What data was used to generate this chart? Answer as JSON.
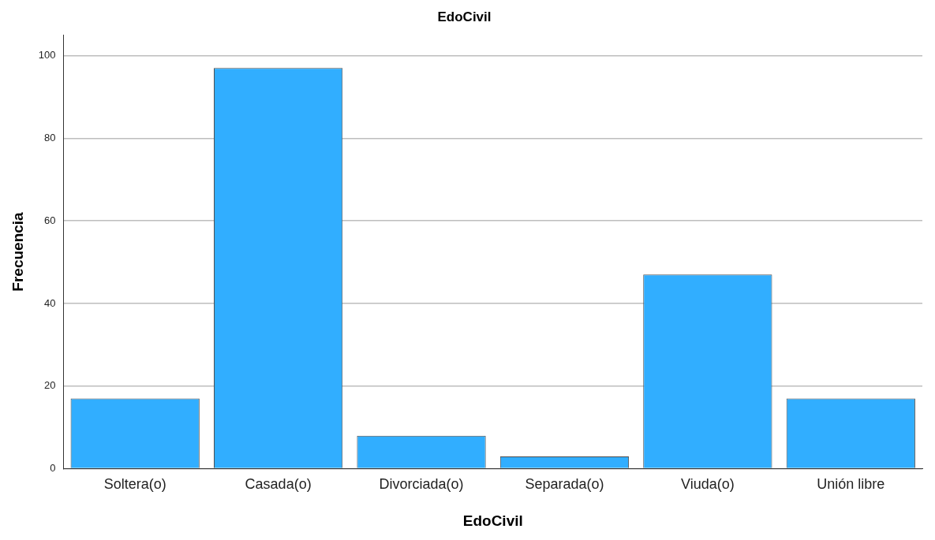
{
  "chart_data": {
    "type": "bar",
    "title": "EdoCivil",
    "xlabel": "EdoCivil",
    "ylabel": "Frecuencia",
    "categories": [
      "Soltera(o)",
      "Casada(o)",
      "Divorciada(o)",
      "Separada(o)",
      "Viuda(o)",
      "Unión libre"
    ],
    "values": [
      17,
      97,
      8,
      3,
      47,
      17
    ],
    "color": "#31aeff",
    "ylim": [
      0,
      105
    ],
    "yticks": [
      0,
      20,
      40,
      60,
      80,
      100
    ],
    "grid": "y",
    "legend": false
  }
}
